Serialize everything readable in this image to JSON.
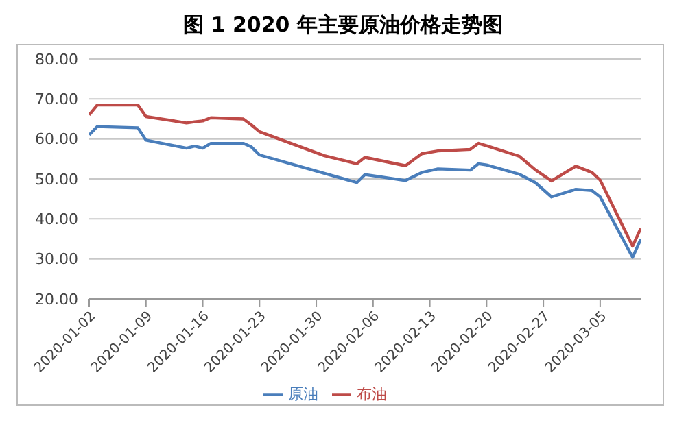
{
  "chart_data": {
    "type": "line",
    "title": "图 1  2020 年主要原油价格走势图",
    "x": [
      "2020-01-02",
      "2020-01-03",
      "2020-01-08",
      "2020-01-09",
      "2020-01-14",
      "2020-01-15",
      "2020-01-16",
      "2020-01-17",
      "2020-01-21",
      "2020-01-22",
      "2020-01-23",
      "2020-01-31",
      "2020-02-04",
      "2020-02-05",
      "2020-02-10",
      "2020-02-12",
      "2020-02-14",
      "2020-02-18",
      "2020-02-19",
      "2020-02-20",
      "2020-02-24",
      "2020-02-26",
      "2020-02-28",
      "2020-03-02",
      "2020-03-04",
      "2020-03-05",
      "2020-03-09",
      "2020-03-10"
    ],
    "series": [
      {
        "name": "原油",
        "color": "#4a7ebb",
        "values": [
          61.0,
          63.1,
          62.8,
          59.7,
          57.7,
          58.2,
          57.7,
          58.9,
          58.9,
          58.0,
          56.0,
          51.4,
          49.1,
          51.1,
          49.6,
          51.6,
          52.5,
          52.2,
          53.8,
          53.5,
          51.2,
          49.1,
          45.5,
          47.4,
          47.1,
          45.5,
          30.4,
          34.9
        ]
      },
      {
        "name": "布油",
        "color": "#be4b48",
        "values": [
          66.0,
          68.5,
          68.5,
          65.6,
          64.0,
          64.3,
          64.5,
          65.3,
          65.0,
          63.5,
          61.8,
          55.8,
          53.8,
          55.4,
          53.3,
          56.3,
          57.0,
          57.4,
          58.9,
          58.3,
          55.7,
          52.3,
          49.5,
          53.2,
          51.6,
          49.7,
          33.2,
          37.6
        ]
      }
    ],
    "xlim": [
      "2020-01-02",
      "2020-03-10"
    ],
    "xticks": [
      "2020-01-02",
      "2020-01-09",
      "2020-01-16",
      "2020-01-23",
      "2020-01-30",
      "2020-02-06",
      "2020-02-13",
      "2020-02-20",
      "2020-02-27",
      "2020-03-05"
    ],
    "ylim": [
      20,
      80
    ],
    "yticks": [
      {
        "value": 20,
        "label": "20.00"
      },
      {
        "value": 30,
        "label": "30.00"
      },
      {
        "value": 40,
        "label": "40.00"
      },
      {
        "value": 50,
        "label": "50.00"
      },
      {
        "value": 60,
        "label": "60.00"
      },
      {
        "value": 70,
        "label": "70.00"
      },
      {
        "value": 80,
        "label": "80.00"
      }
    ],
    "grid": "y",
    "legend": "bottom",
    "marker": "none",
    "line_style": "solid"
  }
}
